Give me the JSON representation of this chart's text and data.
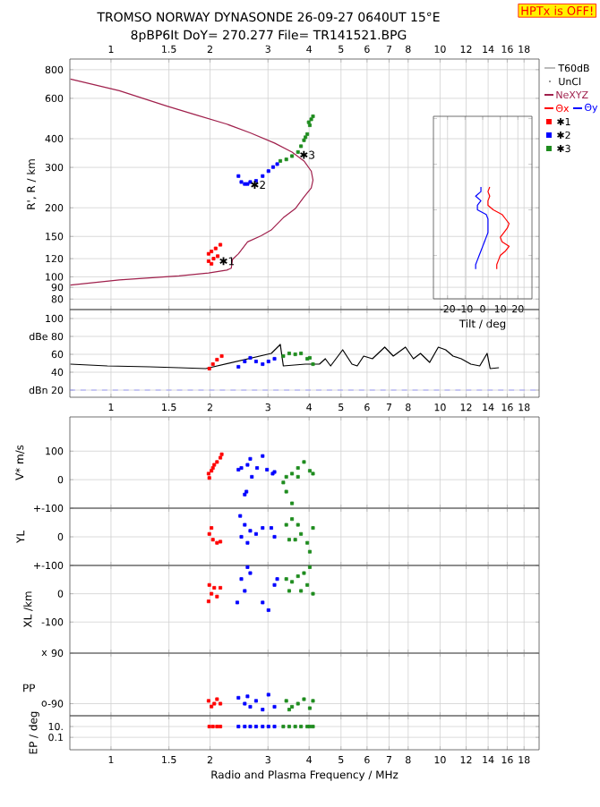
{
  "chart_data": [
    {
      "type": "scatter",
      "title": "TROMSO NORWAY DYNASONDE 26-09-27 0640UT 15°E",
      "subtitle": "8pBP6It DoY= 270.277 File= TR141521.BPG",
      "ylabel": "R', R / km",
      "log": "xy",
      "xlim": [
        0.75,
        20
      ],
      "ylim": [
        72,
        890
      ],
      "xticks": [
        1,
        1.5,
        2,
        3,
        4,
        5,
        6,
        7,
        8,
        10,
        12,
        14,
        16,
        18
      ],
      "yticks": [
        80,
        90,
        100,
        120,
        150,
        200,
        300,
        400,
        600,
        800
      ],
      "grid": true,
      "legend": "right",
      "marker": "square",
      "annotations": [
        "HPTx is OFF!",
        "T60dB",
        "UnCl",
        {
          "text": "✱1",
          "x": 2.25,
          "y": 117
        },
        {
          "text": "✱2",
          "x": 2.8,
          "y": 252
        },
        {
          "text": "✱3",
          "x": 3.95,
          "y": 340
        }
      ],
      "series": [
        {
          "name": "NeXYZ",
          "type": "line",
          "marker": "none",
          "color": "#a0204c",
          "x": [
            0.753,
            1.06,
            1.48,
            1.82,
            2.25,
            2.65,
            3.14,
            3.55,
            3.86,
            4.06,
            4.11,
            4.06,
            3.86,
            3.63,
            3.34,
            3.07,
            2.86,
            2.6,
            2.44,
            2.34,
            2.32,
            2.25,
            1.98,
            1.61,
            1.06,
            0.753
          ],
          "values": [
            728,
            648,
            555,
            507,
            463,
            424,
            383,
            350,
            320,
            289,
            264,
            244,
            223,
            198,
            181,
            160,
            151,
            142,
            126,
            119,
            109,
            107,
            104,
            101,
            97,
            92
          ]
        },
        {
          "name": "✱1",
          "color": "#ff0000",
          "x": [
            1.98,
            2.02,
            2.08,
            2.15,
            1.98,
            2.05,
            2.11,
            2.02
          ],
          "values": [
            126,
            129,
            133,
            138,
            117,
            120,
            123,
            114
          ]
        },
        {
          "name": "✱2",
          "color": "#0000ff",
          "x": [
            2.44,
            2.49,
            2.55,
            2.6,
            2.65,
            2.76,
            2.89,
            3.01,
            3.11,
            3.2
          ],
          "values": [
            275,
            259,
            254,
            254,
            259,
            262,
            275,
            289,
            301,
            310
          ]
        },
        {
          "name": "✱3",
          "color": "#1e8c1e",
          "x": [
            3.27,
            3.41,
            3.55,
            3.7,
            3.78,
            3.86,
            3.95,
            4.02,
            4.06,
            4.11,
            3.99,
            3.9
          ],
          "values": [
            320,
            325,
            336,
            350,
            371,
            394,
            419,
            458,
            486,
            501,
            472,
            406
          ]
        }
      ]
    },
    {
      "type": "line",
      "orientation": "horizontal",
      "xlabel": "Tilt / deg",
      "categories": [
        null,
        null,
        null,
        null,
        null,
        null,
        null,
        null,
        null,
        null,
        null,
        null,
        null,
        null,
        null,
        null,
        null,
        null,
        null,
        null,
        null,
        null,
        null,
        null,
        null,
        null,
        null,
        null,
        null,
        null,
        null,
        null,
        null,
        null,
        null,
        null,
        null,
        null,
        null,
        null
      ],
      "xlim": [
        -28,
        28
      ],
      "xticks": [
        -20,
        -10,
        0,
        10,
        20
      ],
      "grid": "x",
      "series": [
        {
          "name": "Θx",
          "color": "#ff0000",
          "values": [
            null,
            null,
            null,
            null,
            null,
            null,
            null,
            null,
            null,
            null,
            null,
            null,
            null,
            null,
            null,
            4,
            3,
            4,
            3,
            3,
            6,
            11,
            13,
            15,
            14,
            12,
            10,
            11,
            15,
            13,
            10,
            9,
            8,
            8,
            null,
            null,
            null,
            null,
            null,
            null
          ]
        },
        {
          "name": "Θy",
          "color": "#0000ff",
          "values": [
            null,
            null,
            null,
            null,
            null,
            null,
            null,
            null,
            null,
            null,
            null,
            null,
            null,
            null,
            null,
            -1,
            -1,
            -4,
            -1,
            -3,
            -3,
            2,
            3,
            3,
            3,
            3,
            2,
            1,
            0,
            -1,
            -2,
            -3,
            -4,
            -4,
            null,
            null,
            null,
            null,
            null,
            null
          ]
        }
      ]
    },
    {
      "type": "line",
      "log": "x",
      "xlim": [
        0.75,
        20
      ],
      "ylim": [
        12,
        110
      ],
      "xticks": [
        1,
        1.5,
        2,
        3,
        4,
        5,
        6,
        7,
        8,
        10,
        12,
        14,
        16,
        18
      ],
      "yticks": [
        {
          "value": 20,
          "label": "dBn 20"
        },
        40,
        60,
        {
          "value": 80,
          "label": "dBe 80"
        },
        100
      ],
      "grid": true,
      "marker": "square",
      "ref_lines": [
        {
          "axis": "y",
          "value": 20,
          "color": "#9090ff",
          "line_style": "dashed"
        }
      ],
      "series": [
        {
          "color": "#000000",
          "marker": "none",
          "x": [
            0.753,
            0.975,
            1.31,
            1.61,
            1.94,
            3.07,
            3.27,
            3.34,
            3.9,
            4.3,
            4.48,
            4.65,
            5.06,
            5.4,
            5.6,
            5.86,
            6.23,
            6.79,
            7.21,
            7.85,
            8.3,
            8.72,
            9.3,
            9.88,
            10.4,
            10.95,
            11.6,
            12.4,
            13.2,
            13.9,
            14.2,
            15.1
          ],
          "values": [
            49,
            47,
            46,
            45,
            44,
            61,
            71,
            47,
            49,
            49,
            55,
            47,
            65,
            49,
            47,
            58,
            55,
            68,
            58,
            68,
            55,
            61,
            51,
            68,
            65,
            58,
            55,
            49,
            47,
            61,
            44,
            45
          ]
        },
        {
          "type": "scatter",
          "color": "#ff0000",
          "x": [
            1.99,
            2.04,
            2.1,
            2.17
          ],
          "values": [
            44,
            49,
            54,
            58
          ]
        },
        {
          "type": "scatter",
          "color": "#0000ff",
          "x": [
            2.44,
            2.55,
            2.65,
            2.76,
            2.89,
            3.01,
            3.14
          ],
          "values": [
            46,
            52,
            56,
            52,
            49,
            52,
            55
          ]
        },
        {
          "type": "scatter",
          "color": "#1e8c1e",
          "x": [
            3.34,
            3.48,
            3.63,
            3.78,
            3.95,
            4.02,
            4.11
          ],
          "values": [
            58,
            61,
            60,
            61,
            55,
            56,
            49
          ]
        }
      ]
    },
    {
      "type": "scatter",
      "ylabel": "V* m/s",
      "log": "x",
      "xlim": [
        0.75,
        20
      ],
      "ylim": [
        -100,
        220
      ],
      "xticks": [
        1,
        1.5,
        2,
        3,
        4,
        5,
        6,
        7,
        8,
        10,
        12,
        14,
        16,
        18
      ],
      "yticks": [
        100,
        0,
        {
          "value": -100,
          "label": "+-100"
        }
      ],
      "grid": true,
      "tick_labels": "y",
      "marker": "square",
      "series": [
        {
          "color": "#ff0000",
          "x": [
            1.99,
            2.02,
            2.06,
            2.1,
            2.15,
            2.17,
            2.04,
            1.98
          ],
          "values": [
            6,
            31,
            52,
            62,
            77,
            89,
            41,
            21
          ]
        },
        {
          "color": "#0000ff",
          "x": [
            2.44,
            2.6,
            2.65,
            2.89,
            2.78,
            2.98,
            3.14,
            2.49,
            2.55,
            2.58,
            2.68,
            3.1
          ],
          "values": [
            35,
            52,
            73,
            83,
            41,
            35,
            27,
            41,
            -52,
            -42,
            10,
            21
          ]
        },
        {
          "color": "#1e8c1e",
          "x": [
            3.41,
            3.55,
            3.86,
            4.02,
            3.7,
            3.41,
            3.55,
            3.7,
            3.95,
            4.11,
            3.34
          ],
          "values": [
            10,
            21,
            62,
            31,
            41,
            -42,
            -83,
            10,
            null,
            21,
            -10
          ]
        }
      ]
    },
    {
      "type": "scatter",
      "ylabel": "YL",
      "log": "x",
      "xlim": [
        0.75,
        20
      ],
      "ylim": [
        -100,
        100
      ],
      "xticks": [
        1,
        1.5,
        2,
        3,
        4,
        5,
        6,
        7,
        8,
        10,
        12,
        14,
        16,
        18
      ],
      "yticks": [
        {
          "value": 100,
          "label": null
        },
        0,
        {
          "value": -100,
          "label": "+-100"
        }
      ],
      "grid": true,
      "tick_labels": "y",
      "marker": "square",
      "series": [
        {
          "color": "#ff0000",
          "x": [
            1.99,
            2.04,
            2.1,
            2.02,
            2.15
          ],
          "values": [
            10,
            -10,
            -21,
            31,
            -17
          ]
        },
        {
          "color": "#0000ff",
          "x": [
            2.49,
            2.55,
            2.65,
            2.76,
            2.89,
            3.07,
            3.14,
            2.47,
            2.6
          ],
          "values": [
            0,
            42,
            21,
            10,
            31,
            31,
            0,
            73,
            -21
          ]
        },
        {
          "color": "#1e8c1e",
          "x": [
            3.41,
            3.55,
            3.63,
            3.78,
            3.95,
            4.02,
            4.11,
            3.7,
            3.48
          ],
          "values": [
            42,
            62,
            -10,
            10,
            -21,
            -52,
            31,
            42,
            -10
          ]
        }
      ]
    },
    {
      "type": "scatter",
      "ylabel": "XL /km",
      "log": "x",
      "xlim": [
        0.75,
        20
      ],
      "ylim": [
        -210,
        100
      ],
      "xticks": [
        1,
        1.5,
        2,
        3,
        4,
        5,
        6,
        7,
        8,
        10,
        12,
        14,
        16,
        18
      ],
      "yticks": [
        {
          "value": 100,
          "label": null
        },
        0,
        -100
      ],
      "grid": true,
      "tick_labels": "y",
      "marker": "square",
      "series": [
        {
          "color": "#ff0000",
          "x": [
            1.99,
            2.02,
            2.06,
            2.1,
            1.98,
            2.15
          ],
          "values": [
            31,
            0,
            21,
            -10,
            -27,
            21
          ]
        },
        {
          "color": "#0000ff",
          "x": [
            2.49,
            2.6,
            2.65,
            2.55,
            2.42,
            2.89,
            3.01,
            3.14,
            3.2
          ],
          "values": [
            52,
            94,
            73,
            10,
            -31,
            -31,
            -58,
            31,
            52
          ]
        },
        {
          "color": "#1e8c1e",
          "x": [
            3.41,
            3.55,
            3.7,
            3.86,
            4.02,
            4.11,
            3.48,
            3.95,
            3.78
          ],
          "values": [
            52,
            42,
            62,
            73,
            94,
            0,
            10,
            31,
            10
          ]
        }
      ]
    },
    {
      "type": "scatter",
      "ylabel": "PP",
      "log": "x",
      "xlim": [
        0.75,
        20
      ],
      "ylim": [
        -133,
        90
      ],
      "xticks": [
        1,
        1.5,
        2,
        3,
        4,
        5,
        6,
        7,
        8,
        10,
        12,
        14,
        16,
        18
      ],
      "yticks": [
        90,
        -90
      ],
      "annotations": [
        "x",
        "o"
      ],
      "grid": true,
      "tick_labels": "y",
      "marker": "square",
      "series": [
        {
          "color": "#ff0000",
          "x": [
            1.98,
            2.06,
            2.02,
            2.1,
            2.15
          ],
          "values": [
            -80,
            -90,
            -100,
            -74,
            -90
          ]
        },
        {
          "color": "#0000ff",
          "x": [
            2.44,
            2.55,
            2.65,
            2.76,
            2.89,
            3.01,
            3.14,
            2.6
          ],
          "values": [
            -69,
            -90,
            -101,
            -80,
            -111,
            -58,
            -101,
            -64
          ]
        },
        {
          "color": "#1e8c1e",
          "x": [
            3.41,
            3.55,
            3.7,
            3.86,
            4.02,
            4.11,
            3.48
          ],
          "values": [
            -80,
            -101,
            -90,
            -74,
            -106,
            -80,
            -111
          ]
        }
      ]
    },
    {
      "type": "scatter",
      "ylabel": "EP / deg",
      "xlabel": "Radio and Plasma Frequency / MHz",
      "log": "xy",
      "xlim": [
        0.75,
        20
      ],
      "ylim": [
        0.0005,
        1000
      ],
      "xticks": [
        1,
        1.5,
        2,
        3,
        4,
        5,
        6,
        7,
        8,
        10,
        12,
        14,
        16,
        18
      ],
      "yticks": [
        {
          "value": 10,
          "label": "10."
        },
        0.1
      ],
      "grid": true,
      "marker": "square",
      "series": [
        {
          "color": "#ff0000",
          "x": [
            1.99,
            2.04,
            2.1,
            2.15
          ],
          "values": [
            10,
            10,
            10,
            10
          ]
        },
        {
          "color": "#0000ff",
          "x": [
            2.44,
            2.55,
            2.65,
            2.76,
            2.89,
            3.01,
            3.14
          ],
          "values": [
            10,
            10,
            10,
            10,
            10,
            10,
            10
          ]
        },
        {
          "color": "#1e8c1e",
          "x": [
            3.34,
            3.48,
            3.63,
            3.78,
            3.95,
            4.02,
            4.11
          ],
          "values": [
            10,
            10,
            10,
            10,
            10,
            10,
            10
          ]
        }
      ]
    }
  ]
}
